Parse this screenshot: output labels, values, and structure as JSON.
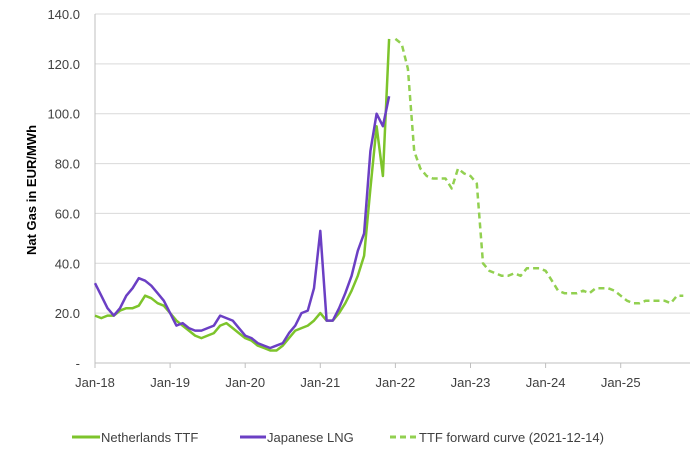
{
  "chart_data": {
    "type": "line",
    "title": "",
    "ylabel": "Nat Gas in EUR/MWh",
    "xlabel": "",
    "ylim": [
      0,
      140
    ],
    "yticks": [
      "-",
      "20.0",
      "40.0",
      "60.0",
      "80.0",
      "100.0",
      "120.0",
      "140.0"
    ],
    "xticks": [
      "Jan-18",
      "Jan-19",
      "Jan-20",
      "Jan-21",
      "Jan-22",
      "Jan-23",
      "Jan-24",
      "Jan-25"
    ],
    "grid": "horizontal",
    "legend_position": "bottom",
    "series": [
      {
        "name": "Netherlands TTF",
        "color": "#7dc42b",
        "style": "solid",
        "x": [
          "2018-01",
          "2018-02",
          "2018-03",
          "2018-04",
          "2018-05",
          "2018-06",
          "2018-07",
          "2018-08",
          "2018-09",
          "2018-10",
          "2018-11",
          "2018-12",
          "2019-01",
          "2019-02",
          "2019-03",
          "2019-04",
          "2019-05",
          "2019-06",
          "2019-07",
          "2019-08",
          "2019-09",
          "2019-10",
          "2019-11",
          "2019-12",
          "2020-01",
          "2020-02",
          "2020-03",
          "2020-04",
          "2020-05",
          "2020-06",
          "2020-07",
          "2020-08",
          "2020-09",
          "2020-10",
          "2020-11",
          "2020-12",
          "2021-01",
          "2021-02",
          "2021-03",
          "2021-04",
          "2021-05",
          "2021-06",
          "2021-07",
          "2021-08",
          "2021-09",
          "2021-10",
          "2021-11",
          "2021-12"
        ],
        "values": [
          19,
          18,
          19,
          19,
          21,
          22,
          22,
          23,
          27,
          26,
          24,
          23,
          20,
          17,
          15,
          13,
          11,
          10,
          11,
          12,
          15,
          16,
          14,
          12,
          10,
          9,
          7,
          6,
          5,
          5,
          7,
          10,
          13,
          14,
          15,
          17,
          20,
          17,
          17,
          20,
          24,
          29,
          35,
          43,
          70,
          95,
          75,
          130
        ]
      },
      {
        "name": "Japanese LNG",
        "color": "#6b3fc4",
        "style": "solid",
        "x": [
          "2018-01",
          "2018-02",
          "2018-03",
          "2018-04",
          "2018-05",
          "2018-06",
          "2018-07",
          "2018-08",
          "2018-09",
          "2018-10",
          "2018-11",
          "2018-12",
          "2019-01",
          "2019-02",
          "2019-03",
          "2019-04",
          "2019-05",
          "2019-06",
          "2019-07",
          "2019-08",
          "2019-09",
          "2019-10",
          "2019-11",
          "2019-12",
          "2020-01",
          "2020-02",
          "2020-03",
          "2020-04",
          "2020-05",
          "2020-06",
          "2020-07",
          "2020-08",
          "2020-09",
          "2020-10",
          "2020-11",
          "2020-12",
          "2021-01",
          "2021-02",
          "2021-03",
          "2021-04",
          "2021-05",
          "2021-06",
          "2021-07",
          "2021-08",
          "2021-09",
          "2021-10",
          "2021-11",
          "2021-12"
        ],
        "values": [
          32,
          27,
          22,
          19,
          22,
          27,
          30,
          34,
          33,
          31,
          28,
          25,
          20,
          15,
          16,
          14,
          13,
          13,
          14,
          15,
          19,
          18,
          17,
          14,
          11,
          10,
          8,
          7,
          6,
          7,
          8,
          12,
          15,
          20,
          21,
          30,
          53,
          17,
          17,
          22,
          28,
          35,
          45,
          52,
          85,
          100,
          95,
          107
        ]
      },
      {
        "name": "TTF forward curve (2021-12-14)",
        "color": "#92d050",
        "style": "dashed",
        "x": [
          "2022-01",
          "2022-02",
          "2022-03",
          "2022-04",
          "2022-05",
          "2022-06",
          "2022-07",
          "2022-08",
          "2022-09",
          "2022-10",
          "2022-11",
          "2022-12",
          "2023-01",
          "2023-02",
          "2023-03",
          "2023-04",
          "2023-05",
          "2023-06",
          "2023-07",
          "2023-08",
          "2023-09",
          "2023-10",
          "2023-11",
          "2023-12",
          "2024-01",
          "2024-02",
          "2024-03",
          "2024-04",
          "2024-05",
          "2024-06",
          "2024-07",
          "2024-08",
          "2024-09",
          "2024-10",
          "2024-11",
          "2024-12",
          "2025-01",
          "2025-02",
          "2025-03",
          "2025-04",
          "2025-05",
          "2025-06",
          "2025-07",
          "2025-08",
          "2025-09",
          "2025-10",
          "2025-11"
        ],
        "values": [
          130,
          128,
          118,
          85,
          78,
          75,
          74,
          74,
          74,
          70,
          78,
          76,
          75,
          72,
          40,
          37,
          36,
          35,
          35,
          36,
          35,
          38,
          38,
          38,
          37,
          33,
          29,
          28,
          28,
          28,
          29,
          28,
          30,
          30,
          30,
          29,
          27,
          25,
          24,
          24,
          25,
          25,
          25,
          25,
          24,
          27,
          27
        ]
      }
    ]
  },
  "colors": {
    "grid": "#d9d9d9",
    "axis": "#bfbfbf"
  }
}
